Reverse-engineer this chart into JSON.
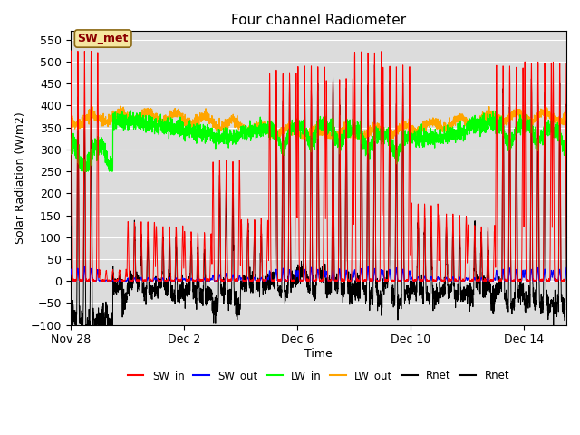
{
  "title": "Four channel Radiometer",
  "xlabel": "Time",
  "ylabel": "Solar Radiation (W/m2)",
  "ylim": [
    -100,
    570
  ],
  "bg_color": "#dcdcdc",
  "xtick_labels": [
    "Nov 28",
    "Dec 2",
    "Dec 6",
    "Dec 10",
    "Dec 14"
  ],
  "xtick_positions": [
    0,
    4,
    8,
    12,
    16
  ],
  "total_days": 17.5,
  "n_points": 3500,
  "annotation_text": "SW_met",
  "legend_entries": [
    "SW_in",
    "SW_out",
    "LW_in",
    "LW_out",
    "Rnet",
    "Rnet"
  ],
  "legend_colors": [
    "red",
    "blue",
    "lime",
    "orange",
    "black",
    "black"
  ]
}
